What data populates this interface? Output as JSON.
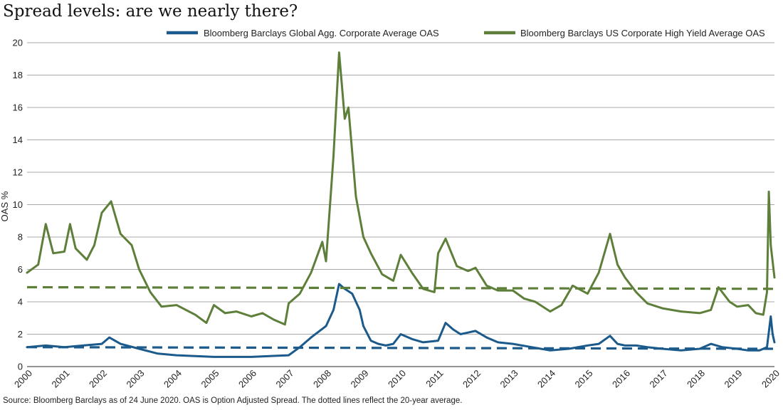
{
  "title": "Spread levels: are we nearly there?",
  "source": "Source: Bloomberg Barclays as of 24 June 2020. OAS is Option Adjusted Spread. The dotted lines reflect the 20-year average.",
  "colors": {
    "global_agg": "#1b5a8a",
    "us_hy": "#5e7f3a",
    "grid": "#a9a9a9"
  },
  "chart_data": {
    "type": "line",
    "title": "Spread levels: are we nearly there?",
    "xlabel": "",
    "ylabel": "OAS %",
    "xlim": [
      2000,
      2020
    ],
    "ylim": [
      0,
      20
    ],
    "x_ticks": [
      "2000",
      "2001",
      "2002",
      "2003",
      "2004",
      "2005",
      "2006",
      "2007",
      "2008",
      "2009",
      "2010",
      "2011",
      "2012",
      "2013",
      "2014",
      "2015",
      "2016",
      "2017",
      "2018",
      "2019",
      "2020"
    ],
    "y_ticks": [
      0,
      2,
      4,
      6,
      8,
      10,
      12,
      14,
      16,
      18,
      20
    ],
    "grid": "horizontal",
    "legend_position": "top",
    "series": [
      {
        "name": "Bloomberg Barclays Global Agg. Corporate Average OAS",
        "color": "#1b5a8a",
        "x": [
          2000.0,
          2000.5,
          2001.0,
          2001.5,
          2002.0,
          2002.2,
          2002.5,
          2003.0,
          2003.5,
          2004.0,
          2004.5,
          2005.0,
          2005.5,
          2006.0,
          2006.5,
          2007.0,
          2007.3,
          2007.6,
          2008.0,
          2008.2,
          2008.35,
          2008.5,
          2008.7,
          2008.9,
          2009.0,
          2009.2,
          2009.4,
          2009.6,
          2009.8,
          2010.0,
          2010.3,
          2010.6,
          2011.0,
          2011.2,
          2011.4,
          2011.6,
          2011.8,
          2012.0,
          2012.3,
          2012.6,
          2013.0,
          2013.5,
          2014.0,
          2014.5,
          2015.0,
          2015.3,
          2015.6,
          2015.8,
          2016.0,
          2016.3,
          2016.6,
          2017.0,
          2017.5,
          2018.0,
          2018.3,
          2018.6,
          2019.0,
          2019.3,
          2019.6,
          2019.8,
          2019.9,
          2019.95,
          2020.0
        ],
        "values": [
          1.2,
          1.3,
          1.2,
          1.3,
          1.4,
          1.8,
          1.4,
          1.1,
          0.8,
          0.7,
          0.65,
          0.6,
          0.6,
          0.6,
          0.65,
          0.7,
          1.2,
          1.8,
          2.5,
          3.5,
          5.1,
          4.8,
          4.5,
          3.5,
          2.5,
          1.6,
          1.4,
          1.3,
          1.4,
          2.0,
          1.7,
          1.5,
          1.6,
          2.7,
          2.3,
          2.0,
          2.1,
          2.2,
          1.8,
          1.5,
          1.4,
          1.2,
          1.0,
          1.1,
          1.3,
          1.4,
          1.9,
          1.4,
          1.3,
          1.3,
          1.2,
          1.1,
          1.0,
          1.1,
          1.4,
          1.2,
          1.1,
          1.0,
          1.0,
          1.2,
          3.1,
          2.0,
          1.5
        ]
      },
      {
        "name": "Bloomberg Barclays US Corporate High Yield Average OAS",
        "color": "#5e7f3a",
        "x": [
          2000.0,
          2000.3,
          2000.5,
          2000.7,
          2001.0,
          2001.15,
          2001.3,
          2001.6,
          2001.8,
          2002.0,
          2002.25,
          2002.5,
          2002.8,
          2003.0,
          2003.3,
          2003.6,
          2004.0,
          2004.5,
          2004.8,
          2005.0,
          2005.3,
          2005.6,
          2006.0,
          2006.3,
          2006.6,
          2006.9,
          2007.0,
          2007.3,
          2007.6,
          2007.9,
          2008.0,
          2008.2,
          2008.35,
          2008.5,
          2008.6,
          2008.8,
          2009.0,
          2009.2,
          2009.5,
          2009.8,
          2010.0,
          2010.3,
          2010.6,
          2010.9,
          2011.0,
          2011.2,
          2011.5,
          2011.8,
          2012.0,
          2012.3,
          2012.6,
          2013.0,
          2013.3,
          2013.6,
          2014.0,
          2014.3,
          2014.6,
          2015.0,
          2015.3,
          2015.6,
          2015.8,
          2016.0,
          2016.3,
          2016.6,
          2017.0,
          2017.5,
          2018.0,
          2018.3,
          2018.5,
          2018.8,
          2019.0,
          2019.3,
          2019.5,
          2019.7,
          2019.8,
          2019.85,
          2019.9,
          2019.95,
          2020.0
        ],
        "values": [
          5.8,
          6.3,
          8.8,
          7.0,
          7.1,
          8.8,
          7.3,
          6.6,
          7.5,
          9.5,
          10.2,
          8.2,
          7.5,
          6.0,
          4.6,
          3.7,
          3.8,
          3.2,
          2.7,
          3.8,
          3.3,
          3.4,
          3.1,
          3.3,
          2.9,
          2.6,
          3.9,
          4.5,
          5.8,
          7.7,
          6.5,
          13.0,
          19.4,
          15.3,
          16.0,
          10.5,
          8.0,
          7.0,
          5.7,
          5.3,
          6.9,
          5.8,
          4.8,
          4.6,
          7.0,
          7.9,
          6.2,
          5.9,
          6.1,
          5.0,
          4.7,
          4.7,
          4.2,
          4.0,
          3.4,
          3.8,
          5.0,
          4.5,
          5.8,
          8.2,
          6.3,
          5.5,
          4.6,
          3.9,
          3.6,
          3.4,
          3.3,
          3.5,
          4.9,
          4.0,
          3.7,
          3.8,
          3.3,
          3.2,
          4.6,
          10.8,
          7.5,
          6.5,
          5.5
        ]
      },
      {
        "name": "US HY 20-year average",
        "color": "#5e7f3a",
        "style": "dashed",
        "x": [
          2000,
          2020
        ],
        "values": [
          4.9,
          4.8
        ]
      },
      {
        "name": "Global Agg 20-year average",
        "color": "#1b5a8a",
        "style": "dashed",
        "x": [
          2000,
          2020
        ],
        "values": [
          1.2,
          1.1
        ]
      }
    ],
    "legend": [
      "Bloomberg Barclays Global Agg. Corporate Average OAS",
      "Bloomberg Barclays US Corporate High Yield Average OAS"
    ]
  }
}
